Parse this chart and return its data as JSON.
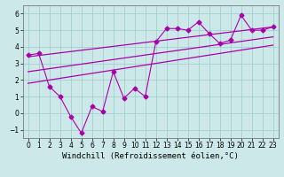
{
  "x": [
    0,
    1,
    2,
    3,
    4,
    5,
    6,
    7,
    8,
    9,
    10,
    11,
    12,
    13,
    14,
    15,
    16,
    17,
    18,
    19,
    20,
    21,
    22,
    23
  ],
  "y": [
    3.5,
    3.6,
    1.6,
    1.0,
    -0.2,
    -1.2,
    0.4,
    0.1,
    2.5,
    0.9,
    1.5,
    1.0,
    4.3,
    5.1,
    5.1,
    5.0,
    5.5,
    4.8,
    4.2,
    4.4,
    5.9,
    5.0,
    5.0,
    5.2
  ],
  "line_color": "#aa00aa",
  "marker": "D",
  "markersize": 2.5,
  "xlabel": "Windchill (Refroidissement éolien,°C)",
  "xlim": [
    -0.5,
    23.5
  ],
  "ylim": [
    -1.5,
    6.5
  ],
  "yticks": [
    -1,
    0,
    1,
    2,
    3,
    4,
    5,
    6
  ],
  "xticks": [
    0,
    1,
    2,
    3,
    4,
    5,
    6,
    7,
    8,
    9,
    10,
    11,
    12,
    13,
    14,
    15,
    16,
    17,
    18,
    19,
    20,
    21,
    22,
    23
  ],
  "bg_color": "#cce8e8",
  "grid_color": "#99cccc",
  "label_fontsize": 6.5,
  "tick_fontsize": 5.5,
  "reg_line1": [
    1.8,
    4.1
  ],
  "reg_line2": [
    2.5,
    4.6
  ],
  "reg_line3": [
    3.4,
    5.2
  ]
}
